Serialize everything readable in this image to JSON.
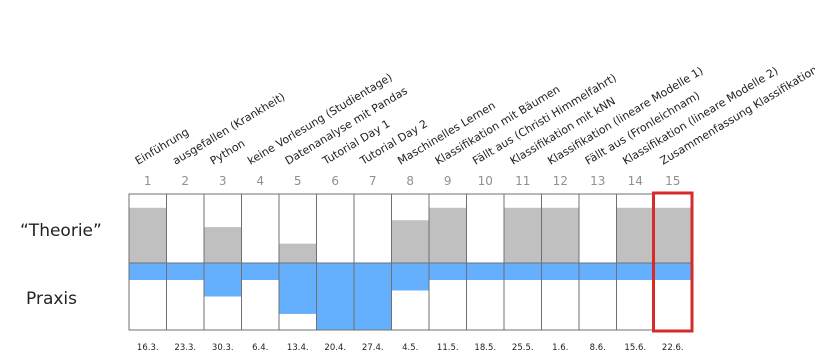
{
  "row_labels": {
    "theorie": "“Theorie”",
    "praxis": "Praxis"
  },
  "colors": {
    "theory_fill": "#c0c0c0",
    "practice_fill": "#64b0ff",
    "grid": "#707070",
    "highlight": "#d62b2b",
    "label_text": "#222222",
    "number_text": "#909090"
  },
  "highlight_week": 15,
  "weeks": [
    {
      "num": "1",
      "topic": "Einführung",
      "date": "16.3.",
      "theory": 0.8,
      "practice": 0.25
    },
    {
      "num": "2",
      "topic": "ausgefallen (Krankheit)",
      "date": "23.3.",
      "theory": 0,
      "practice": 0
    },
    {
      "num": "3",
      "topic": "Python",
      "date": "30.3.",
      "theory": 0.52,
      "practice": 0.5
    },
    {
      "num": "4",
      "topic": "keine Vorlesung (Studientage)",
      "date": "6.4.",
      "theory": 0,
      "practice": 0
    },
    {
      "num": "5",
      "topic": "Datenanalyse mit Pandas",
      "date": "13.4.",
      "theory": 0.28,
      "practice": 0.76
    },
    {
      "num": "6",
      "topic": "Tutorial Day 1",
      "date": "20.4.",
      "theory": 0,
      "practice": 1.0
    },
    {
      "num": "7",
      "topic": "Tutorial Day 2",
      "date": "27.4.",
      "theory": 0,
      "practice": 1.0
    },
    {
      "num": "8",
      "topic": "Maschinelles Lernen",
      "date": "4.5.",
      "theory": 0.62,
      "practice": 0.41
    },
    {
      "num": "9",
      "topic": "Klassifikation mit Bäumen",
      "date": "11.5.",
      "theory": 0.8,
      "practice": 0.25
    },
    {
      "num": "10",
      "topic": "Fällt aus (Christi Himmelfahrt)",
      "date": "18.5.",
      "theory": 0,
      "practice": 0
    },
    {
      "num": "11",
      "topic": "Klassifikation mit kNN",
      "date": "25.5.",
      "theory": 0.8,
      "practice": 0.25
    },
    {
      "num": "12",
      "topic": "Klassifikation (lineare Modelle 1)",
      "date": "1.6.",
      "theory": 0.8,
      "practice": 0.25
    },
    {
      "num": "13",
      "topic": "Fällt aus (Fronleichnam)",
      "date": "8.6.",
      "theory": 0,
      "practice": 0
    },
    {
      "num": "14",
      "topic": "Klassifikation (lineare Modelle 2)",
      "date": "15.6.",
      "theory": 0.8,
      "practice": 0.25
    },
    {
      "num": "15",
      "topic": "Zusammenfassung Klassifikation",
      "date": "22.6.",
      "theory": 0.8,
      "practice": 0.25
    }
  ]
}
